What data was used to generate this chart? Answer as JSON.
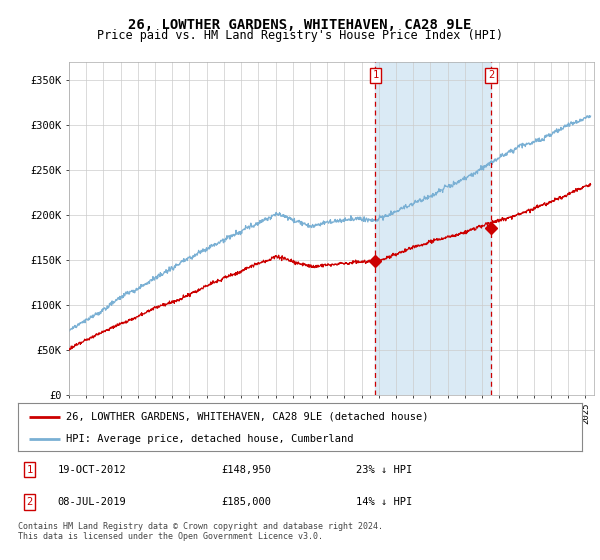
{
  "title": "26, LOWTHER GARDENS, WHITEHAVEN, CA28 9LE",
  "subtitle": "Price paid vs. HM Land Registry's House Price Index (HPI)",
  "ylim": [
    0,
    370000
  ],
  "xlim_start": 1995.0,
  "xlim_end": 2025.5,
  "hpi_color": "#7ab0d4",
  "price_color": "#cc0000",
  "vline_color": "#cc0000",
  "shade_color": "#daeaf5",
  "marker1_date": 2012.8,
  "marker2_date": 2019.52,
  "marker1_price": 148950,
  "marker2_price": 185000,
  "legend_label1": "26, LOWTHER GARDENS, WHITEHAVEN, CA28 9LE (detached house)",
  "legend_label2": "HPI: Average price, detached house, Cumberland",
  "table_row1_date": "19-OCT-2012",
  "table_row1_price": "£148,950",
  "table_row1_hpi": "23% ↓ HPI",
  "table_row2_date": "08-JUL-2019",
  "table_row2_price": "£185,000",
  "table_row2_hpi": "14% ↓ HPI",
  "footer": "Contains HM Land Registry data © Crown copyright and database right 2024.\nThis data is licensed under the Open Government Licence v3.0.",
  "background_color": "#ffffff",
  "grid_color": "#cccccc"
}
